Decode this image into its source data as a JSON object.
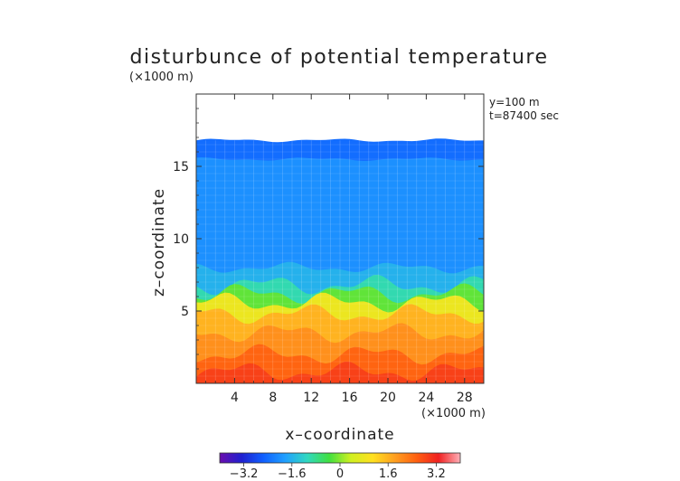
{
  "chart_data": {
    "type": "heatmap",
    "title": "disturbunce of potential temperature",
    "y_unit_note": "(×1000 m)",
    "x_unit_note": "(×1000 m)",
    "annotations": [
      "y=100 m",
      "t=87400 sec"
    ],
    "xlabel": "x–coordinate",
    "ylabel": "z–coordinate",
    "xlim": [
      0,
      30
    ],
    "ylim": [
      0,
      20
    ],
    "x_ticks": [
      4,
      8,
      12,
      16,
      20,
      24,
      28
    ],
    "y_ticks": [
      5,
      10,
      15
    ],
    "data_top_z": 16.8,
    "layers": [
      {
        "z_top": 16.8,
        "value": -2.4
      },
      {
        "z_top": 15.5,
        "value": -2.0
      },
      {
        "z_top": 8.0,
        "value": -1.6
      },
      {
        "z_top": 6.8,
        "value": -1.0
      },
      {
        "z_top": 6.2,
        "value": -0.2
      },
      {
        "z_top": 5.6,
        "value": 0.8
      },
      {
        "z_top": 4.8,
        "value": 1.6
      },
      {
        "z_top": 3.5,
        "value": 2.0
      },
      {
        "z_top": 2.0,
        "value": 2.5
      },
      {
        "z_top": 0.8,
        "value": 2.9
      }
    ],
    "colorbar": {
      "min": -4.0,
      "max": 4.0,
      "ticks": [
        "−3.2",
        "−1.6",
        "0",
        "1.6",
        "3.2"
      ],
      "tick_values": [
        -3.2,
        -1.6,
        0,
        1.6,
        3.2
      ],
      "colors": [
        "#6a0dad",
        "#2020d0",
        "#1060ff",
        "#20a0ff",
        "#30d8c0",
        "#40e040",
        "#d0f020",
        "#ffe020",
        "#ffa020",
        "#ff6010",
        "#f02020",
        "#ffb0b8"
      ]
    },
    "grid": true
  }
}
